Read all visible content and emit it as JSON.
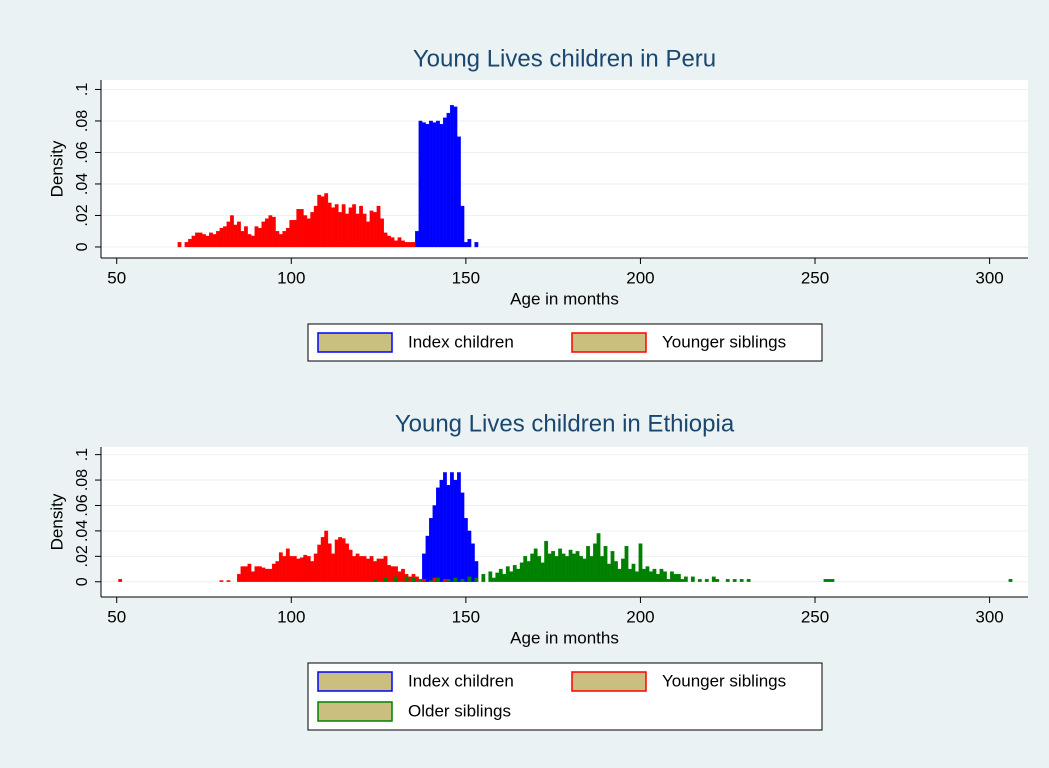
{
  "chart_data": [
    {
      "type": "histogram",
      "title": "Young Lives children in Peru",
      "x_label": "Age in months",
      "y_label": "Density",
      "xlim": [
        45.5,
        311
      ],
      "xticks": [
        50,
        100,
        150,
        200,
        250,
        300
      ],
      "ylim": [
        -0.007,
        0.106
      ],
      "yticks": [
        0,
        {
          "value": 0.02,
          "label": ".02"
        },
        {
          "value": 0.04,
          "label": ".04"
        },
        {
          "value": 0.06,
          "label": ".06"
        },
        {
          "value": 0.08,
          "label": ".08"
        },
        {
          "value": 0.1,
          "label": ".1"
        }
      ],
      "grid": true,
      "legend_fill": "#cbbf7f",
      "series": [
        {
          "name": "Index children",
          "color": "#0000ff",
          "x": [
            136,
            137,
            138,
            139,
            140,
            141,
            142,
            143,
            144,
            145,
            146,
            147,
            148,
            149,
            150,
            151,
            153
          ],
          "values": [
            0.01,
            0.08,
            0.079,
            0.078,
            0.08,
            0.079,
            0.08,
            0.078,
            0.082,
            0.085,
            0.09,
            0.089,
            0.07,
            0.026,
            0.003,
            0.005,
            0.003
          ]
        },
        {
          "name": "Younger siblings",
          "color": "#ff0000",
          "x": [
            68,
            70,
            71,
            72,
            73,
            74,
            75,
            76,
            77,
            78,
            79,
            80,
            81,
            82,
            83,
            84,
            85,
            86,
            87,
            88,
            89,
            90,
            91,
            92,
            93,
            94,
            95,
            96,
            97,
            98,
            99,
            100,
            101,
            102,
            103,
            104,
            105,
            106,
            107,
            108,
            109,
            110,
            111,
            112,
            113,
            114,
            115,
            116,
            117,
            118,
            119,
            120,
            121,
            122,
            123,
            124,
            125,
            126,
            127,
            128,
            129,
            130,
            131,
            132,
            133,
            134,
            135
          ],
          "values": [
            0.003,
            0.003,
            0.005,
            0.007,
            0.009,
            0.009,
            0.008,
            0.007,
            0.009,
            0.008,
            0.01,
            0.012,
            0.013,
            0.016,
            0.02,
            0.014,
            0.016,
            0.01,
            0.013,
            0.008,
            0.007,
            0.013,
            0.012,
            0.016,
            0.018,
            0.02,
            0.019,
            0.01,
            0.008,
            0.01,
            0.012,
            0.017,
            0.017,
            0.024,
            0.024,
            0.02,
            0.018,
            0.022,
            0.026,
            0.033,
            0.032,
            0.034,
            0.028,
            0.025,
            0.027,
            0.022,
            0.027,
            0.021,
            0.025,
            0.027,
            0.021,
            0.026,
            0.021,
            0.016,
            0.023,
            0.022,
            0.026,
            0.018,
            0.009,
            0.007,
            0.006,
            0.004,
            0.006,
            0.004,
            0.003,
            0.003,
            0.003
          ]
        }
      ]
    },
    {
      "type": "histogram",
      "title": "Young Lives children in Ethiopia",
      "x_label": "Age in months",
      "y_label": "Density",
      "xlim": [
        45.5,
        311
      ],
      "xticks": [
        50,
        100,
        150,
        200,
        250,
        300
      ],
      "ylim": [
        -0.012,
        0.106
      ],
      "yticks": [
        0,
        {
          "value": 0.02,
          "label": ".02"
        },
        {
          "value": 0.04,
          "label": ".04"
        },
        {
          "value": 0.06,
          "label": ".06"
        },
        {
          "value": 0.08,
          "label": ".08"
        },
        {
          "value": 0.1,
          "label": ".1"
        }
      ],
      "grid": true,
      "legend_fill": "#cbbf7f",
      "series": [
        {
          "name": "Index children",
          "color": "#0000ff",
          "x": [
            138,
            139,
            140,
            141,
            142,
            143,
            144,
            145,
            146,
            147,
            148,
            149,
            150,
            151,
            152,
            153
          ],
          "values": [
            0.022,
            0.036,
            0.05,
            0.06,
            0.074,
            0.08,
            0.086,
            0.076,
            0.086,
            0.08,
            0.086,
            0.07,
            0.05,
            0.04,
            0.03,
            0.016
          ]
        },
        {
          "name": "Younger siblings",
          "color": "#ff0000",
          "x": [
            51,
            80,
            82,
            85,
            86,
            87,
            88,
            89,
            90,
            91,
            92,
            93,
            94,
            95,
            96,
            97,
            98,
            99,
            100,
            101,
            102,
            103,
            104,
            105,
            106,
            107,
            108,
            109,
            110,
            111,
            112,
            113,
            114,
            115,
            116,
            117,
            118,
            119,
            120,
            121,
            122,
            123,
            124,
            125,
            126,
            127,
            128,
            129,
            130,
            131,
            132,
            133,
            134,
            135,
            136,
            138,
            141,
            144
          ],
          "values": [
            0.002,
            0.001,
            0.001,
            0.006,
            0.012,
            0.012,
            0.014,
            0.008,
            0.012,
            0.012,
            0.011,
            0.01,
            0.01,
            0.014,
            0.016,
            0.023,
            0.02,
            0.026,
            0.02,
            0.02,
            0.018,
            0.019,
            0.021,
            0.02,
            0.016,
            0.022,
            0.029,
            0.035,
            0.04,
            0.03,
            0.022,
            0.033,
            0.035,
            0.034,
            0.03,
            0.025,
            0.02,
            0.022,
            0.02,
            0.02,
            0.018,
            0.02,
            0.016,
            0.018,
            0.018,
            0.02,
            0.013,
            0.012,
            0.012,
            0.008,
            0.01,
            0.006,
            0.004,
            0.006,
            0.004,
            0.002,
            0.003,
            0.002
          ]
        },
        {
          "name": "Older siblings",
          "color": "#008000",
          "x": [
            124,
            127,
            130,
            133,
            135,
            137,
            140,
            142,
            145,
            147,
            149,
            151,
            153,
            155,
            157,
            158,
            159,
            160,
            161,
            162,
            163,
            164,
            165,
            166,
            167,
            168,
            169,
            170,
            171,
            172,
            173,
            174,
            175,
            176,
            177,
            178,
            179,
            180,
            181,
            182,
            183,
            184,
            185,
            186,
            187,
            188,
            189,
            190,
            191,
            192,
            193,
            194,
            195,
            196,
            197,
            198,
            199,
            200,
            201,
            202,
            203,
            204,
            205,
            206,
            207,
            208,
            209,
            210,
            211,
            212,
            213,
            215,
            217,
            219,
            221,
            222,
            225,
            227,
            229,
            231,
            253,
            254,
            255,
            306
          ],
          "values": [
            0.002,
            0.003,
            0.004,
            0.004,
            0.003,
            0.002,
            0.001,
            0.003,
            0.002,
            0.003,
            0.002,
            0.004,
            0.003,
            0.006,
            0.008,
            0.003,
            0.007,
            0.01,
            0.006,
            0.012,
            0.008,
            0.013,
            0.01,
            0.015,
            0.02,
            0.016,
            0.022,
            0.026,
            0.02,
            0.015,
            0.032,
            0.022,
            0.024,
            0.02,
            0.026,
            0.022,
            0.02,
            0.025,
            0.022,
            0.024,
            0.02,
            0.018,
            0.028,
            0.02,
            0.03,
            0.038,
            0.02,
            0.028,
            0.014,
            0.024,
            0.016,
            0.01,
            0.018,
            0.028,
            0.01,
            0.014,
            0.008,
            0.03,
            0.01,
            0.012,
            0.008,
            0.01,
            0.006,
            0.01,
            0.008,
            0.002,
            0.008,
            0.006,
            0.006,
            0.002,
            0.004,
            0.004,
            0.002,
            0.002,
            0.004,
            0.002,
            0.002,
            0.002,
            0.002,
            0.002,
            0.002,
            0.002,
            0.002,
            0.002
          ]
        }
      ]
    }
  ]
}
